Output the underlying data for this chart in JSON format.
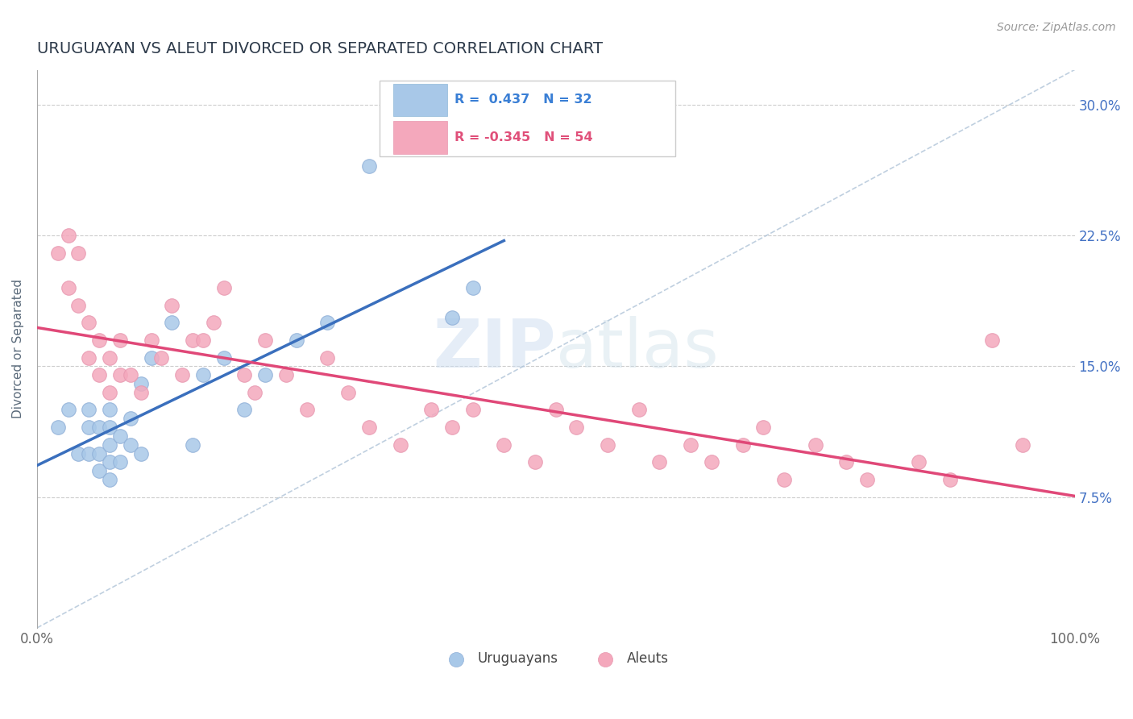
{
  "title": "URUGUAYAN VS ALEUT DIVORCED OR SEPARATED CORRELATION CHART",
  "source_text": "Source: ZipAtlas.com",
  "ylabel": "Divorced or Separated",
  "xlim": [
    0.0,
    1.0
  ],
  "ylim": [
    0.0,
    0.32
  ],
  "uruguayan_R": 0.437,
  "uruguayan_N": 32,
  "aleut_R": -0.345,
  "aleut_N": 54,
  "uruguayan_color": "#a8c8e8",
  "aleut_color": "#f4a8bc",
  "uruguayan_line_color": "#3a6fbd",
  "aleut_line_color": "#e04878",
  "ref_line_color": "#b0c4d8",
  "grid_color": "#cccccc",
  "title_color": "#2d3a4a",
  "axis_label_color": "#5a6a7a",
  "legend_R_color_uruguayan": "#3a7fd5",
  "legend_R_color_aleut": "#e0507a",
  "right_axis_color": "#4472c4",
  "uruguayan_x": [
    0.02,
    0.03,
    0.04,
    0.05,
    0.05,
    0.05,
    0.06,
    0.06,
    0.06,
    0.07,
    0.07,
    0.07,
    0.07,
    0.07,
    0.08,
    0.08,
    0.09,
    0.09,
    0.1,
    0.1,
    0.11,
    0.13,
    0.15,
    0.16,
    0.18,
    0.2,
    0.22,
    0.25,
    0.28,
    0.32,
    0.4,
    0.42
  ],
  "uruguayan_y": [
    0.115,
    0.125,
    0.1,
    0.1,
    0.115,
    0.125,
    0.09,
    0.1,
    0.115,
    0.085,
    0.095,
    0.105,
    0.115,
    0.125,
    0.095,
    0.11,
    0.105,
    0.12,
    0.1,
    0.14,
    0.155,
    0.175,
    0.105,
    0.145,
    0.155,
    0.125,
    0.145,
    0.165,
    0.175,
    0.265,
    0.178,
    0.195
  ],
  "aleut_x": [
    0.02,
    0.03,
    0.03,
    0.04,
    0.04,
    0.05,
    0.05,
    0.06,
    0.06,
    0.07,
    0.07,
    0.08,
    0.08,
    0.09,
    0.1,
    0.11,
    0.12,
    0.13,
    0.14,
    0.15,
    0.16,
    0.17,
    0.18,
    0.2,
    0.21,
    0.22,
    0.24,
    0.26,
    0.28,
    0.3,
    0.32,
    0.35,
    0.38,
    0.4,
    0.42,
    0.45,
    0.48,
    0.5,
    0.52,
    0.55,
    0.58,
    0.6,
    0.63,
    0.65,
    0.68,
    0.7,
    0.72,
    0.75,
    0.78,
    0.8,
    0.85,
    0.88,
    0.92,
    0.95
  ],
  "aleut_y": [
    0.215,
    0.225,
    0.195,
    0.185,
    0.215,
    0.155,
    0.175,
    0.145,
    0.165,
    0.135,
    0.155,
    0.145,
    0.165,
    0.145,
    0.135,
    0.165,
    0.155,
    0.185,
    0.145,
    0.165,
    0.165,
    0.175,
    0.195,
    0.145,
    0.135,
    0.165,
    0.145,
    0.125,
    0.155,
    0.135,
    0.115,
    0.105,
    0.125,
    0.115,
    0.125,
    0.105,
    0.095,
    0.125,
    0.115,
    0.105,
    0.125,
    0.095,
    0.105,
    0.095,
    0.105,
    0.115,
    0.085,
    0.105,
    0.095,
    0.085,
    0.095,
    0.085,
    0.165,
    0.105
  ]
}
